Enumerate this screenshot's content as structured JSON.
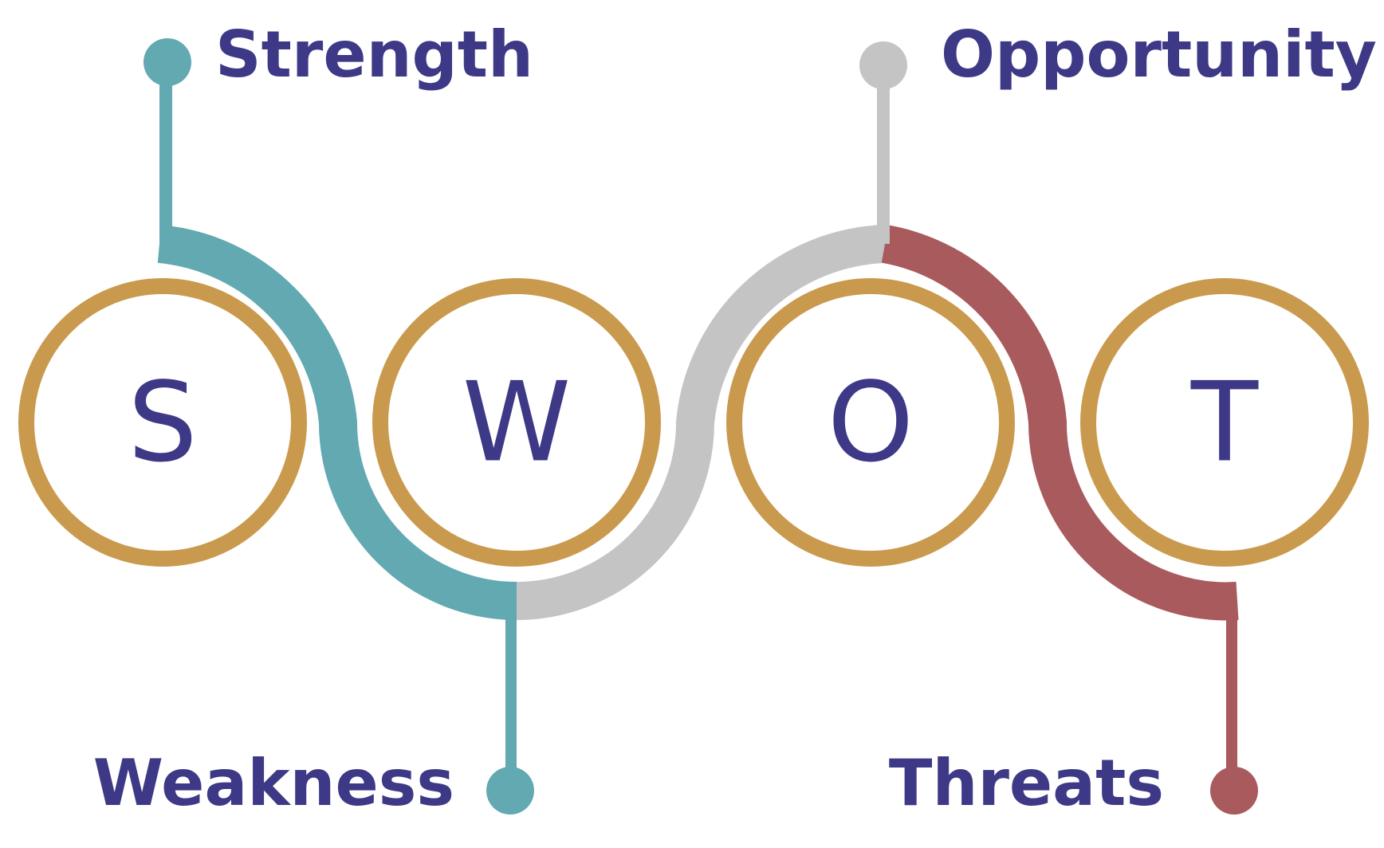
{
  "colors": {
    "background": "#ffffff",
    "ring": "#c99a4e",
    "text": "#3e3987",
    "strength": "#62a9b2",
    "weakness": "#62a9b2",
    "opportunity": "#c4c4c4",
    "threats": "#a85a5d"
  },
  "letters": {
    "s": "S",
    "w": "W",
    "o": "O",
    "t": "T"
  },
  "labels": {
    "strength": "Strength",
    "weakness": "Weakness",
    "opportunity": "Opportunity",
    "threats": "Threats"
  }
}
